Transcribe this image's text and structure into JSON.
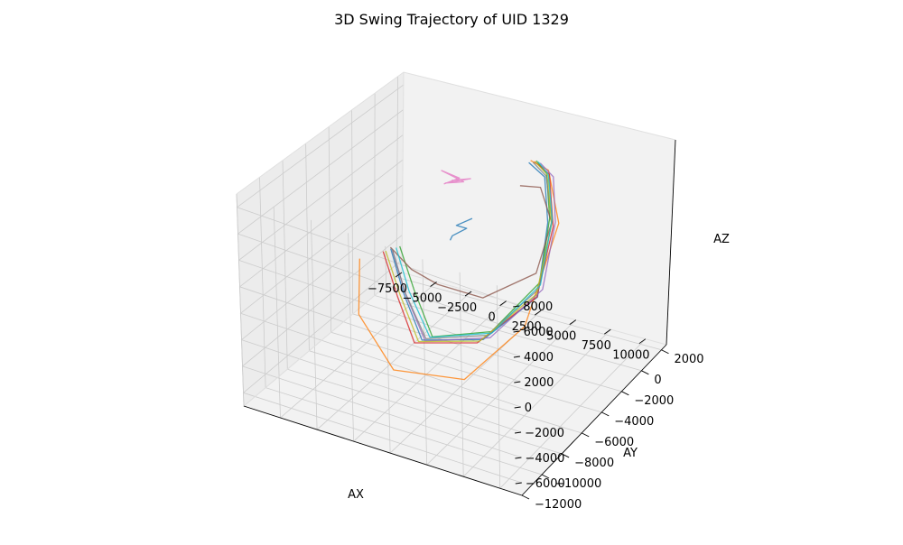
{
  "chart_data": {
    "type": "line3d",
    "title": "3D Swing Trajectory of UID 1329",
    "xlabel": "AX",
    "ylabel": "AY",
    "zlabel": "AZ",
    "xlim": [
      -7500,
      11500
    ],
    "ylim": [
      -12000,
      2500
    ],
    "zlim": [
      -7000,
      9000
    ],
    "x_ticks": [
      -7500,
      -5000,
      -2500,
      0,
      2500,
      5000,
      7500,
      10000
    ],
    "x_tick_labels": [
      "−7500",
      "−5000",
      "−2500",
      "0",
      "2500",
      "5000",
      "7500",
      "10000"
    ],
    "y_ticks": [
      -12000,
      -10000,
      -8000,
      -6000,
      -4000,
      -2000,
      0,
      2000
    ],
    "y_tick_labels": [
      "−12000",
      "−10000",
      "−8000",
      "−6000",
      "−4000",
      "−2000",
      "0",
      "2000"
    ],
    "z_ticks": [
      -6000,
      -4000,
      -2000,
      0,
      2000,
      4000,
      6000,
      8000
    ],
    "z_tick_labels": [
      "−6000",
      "−4000",
      "−2000",
      "0",
      "2000",
      "4000",
      "6000",
      "8000"
    ],
    "grid": true,
    "legend": false,
    "series": [
      {
        "color": "#1f77b4",
        "values": [
          [
            -5200,
            -1500,
            -1500
          ],
          [
            -2000,
            -4500,
            -1800
          ],
          [
            1500,
            -7500,
            -2000
          ],
          [
            5000,
            -6500,
            -1500
          ],
          [
            6200,
            -3000,
            -500
          ],
          [
            5000,
            -500,
            3000
          ],
          [
            4200,
            200,
            5800
          ],
          [
            3000,
            300,
            6500
          ]
        ]
      },
      {
        "color": "#ff7f0e",
        "values": [
          [
            -7000,
            -2000,
            -2500
          ],
          [
            -4000,
            -6000,
            -3000
          ],
          [
            1000,
            -9500,
            -3000
          ],
          [
            5500,
            -9000,
            -2500
          ],
          [
            7500,
            -6000,
            0
          ],
          [
            6500,
            -1500,
            4200
          ],
          [
            4600,
            0,
            6600
          ],
          [
            3200,
            200,
            6800
          ]
        ]
      },
      {
        "color": "#2ca02c",
        "values": [
          [
            -4800,
            -1200,
            -1400
          ],
          [
            -1500,
            -4200,
            -1600
          ],
          [
            2000,
            -7200,
            -1800
          ],
          [
            5200,
            -6000,
            -1200
          ],
          [
            6000,
            -2500,
            200
          ],
          [
            5200,
            -600,
            3500
          ],
          [
            4400,
            100,
            6200
          ],
          [
            3600,
            200,
            6900
          ]
        ]
      },
      {
        "color": "#d62728",
        "values": [
          [
            -5500,
            -1800,
            -1600
          ],
          [
            -2200,
            -4800,
            -1900
          ],
          [
            1200,
            -7800,
            -2100
          ],
          [
            4800,
            -6800,
            -1600
          ],
          [
            6300,
            -3200,
            -300
          ],
          [
            5600,
            -800,
            3100
          ],
          [
            4600,
            100,
            6200
          ],
          [
            3400,
            300,
            6700
          ]
        ]
      },
      {
        "color": "#9467bd",
        "values": [
          [
            -5000,
            -1600,
            -1500
          ],
          [
            -1800,
            -4600,
            -1700
          ],
          [
            1800,
            -7600,
            -1900
          ],
          [
            5400,
            -6400,
            -1300
          ],
          [
            6400,
            -2800,
            0
          ],
          [
            5600,
            -600,
            3300
          ],
          [
            4800,
            200,
            6000
          ],
          [
            3800,
            300,
            6700
          ]
        ]
      },
      {
        "color": "#8c564b",
        "values": [
          [
            -5300,
            -1400,
            -1500
          ],
          [
            -2600,
            -3000,
            -1200
          ],
          [
            0,
            -4000,
            -800
          ],
          [
            3500,
            -4500,
            -300
          ],
          [
            5500,
            -2200,
            500
          ],
          [
            5200,
            -400,
            3000
          ],
          [
            4000,
            100,
            5000
          ],
          [
            2500,
            200,
            4600
          ]
        ]
      },
      {
        "color": "#e377c2",
        "values": [
          [
            -2500,
            -200,
            3500
          ],
          [
            -1500,
            -100,
            4200
          ],
          [
            -2600,
            -300,
            4600
          ],
          [
            -1200,
            -100,
            4000
          ],
          [
            -2400,
            -200,
            3600
          ],
          [
            -800,
            0,
            4300
          ],
          [
            -2000,
            -150,
            3900
          ]
        ]
      },
      {
        "color": "#7f7f7f",
        "values": [
          [
            -5100,
            -1500,
            -1500
          ],
          [
            -1900,
            -4500,
            -1700
          ],
          [
            1700,
            -7400,
            -1900
          ],
          [
            5100,
            -6300,
            -1300
          ],
          [
            6100,
            -2800,
            -100
          ],
          [
            5300,
            -500,
            3200
          ],
          [
            4300,
            200,
            5900
          ],
          [
            3300,
            300,
            6600
          ]
        ]
      },
      {
        "color": "#bcbd22",
        "values": [
          [
            -5400,
            -1700,
            -1600
          ],
          [
            -2100,
            -4700,
            -1800
          ],
          [
            1400,
            -7700,
            -2000
          ],
          [
            4900,
            -6700,
            -1500
          ],
          [
            6200,
            -3100,
            -200
          ],
          [
            5400,
            -700,
            3100
          ],
          [
            4500,
            100,
            6100
          ],
          [
            3500,
            200,
            6800
          ]
        ]
      },
      {
        "color": "#17becf",
        "values": [
          [
            -4900,
            -1400,
            -1400
          ],
          [
            -1700,
            -4400,
            -1600
          ],
          [
            1900,
            -7300,
            -1800
          ],
          [
            5300,
            -6100,
            -1200
          ],
          [
            6100,
            -2600,
            100
          ],
          [
            5300,
            -500,
            3400
          ],
          [
            4500,
            150,
            6100
          ],
          [
            3700,
            250,
            6800
          ]
        ]
      },
      {
        "color": "#1f77b4",
        "values": [
          [
            -1800,
            -500,
            -500
          ],
          [
            -1500,
            -700,
            100
          ],
          [
            -800,
            -300,
            600
          ],
          [
            -1300,
            -600,
            900
          ],
          [
            -500,
            -200,
            1400
          ]
        ]
      }
    ]
  }
}
